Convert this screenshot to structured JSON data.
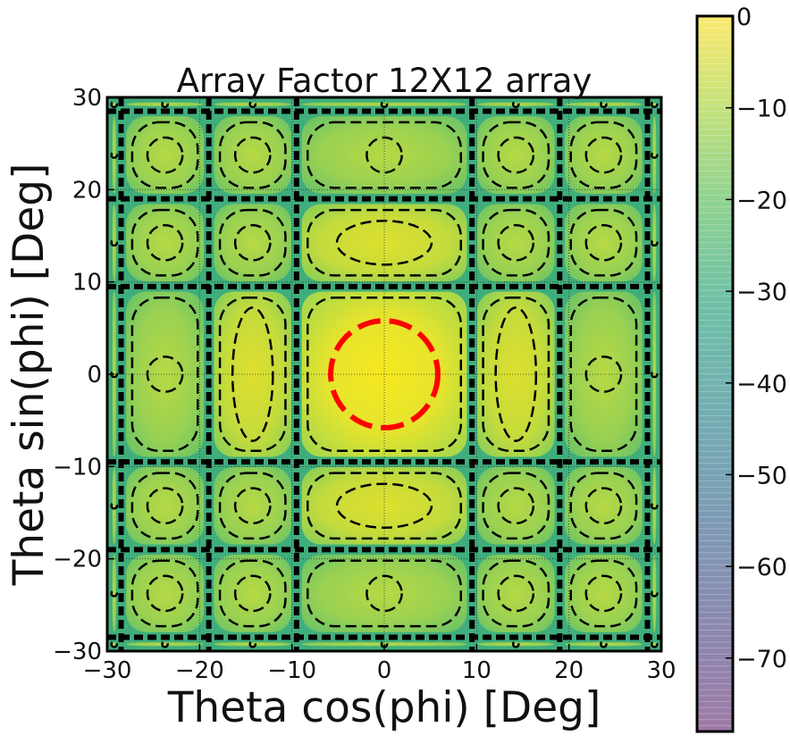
{
  "chart_data": {
    "type": "heatmap",
    "title": "Array Factor 12X12 array",
    "xlabel": "Theta cos(phi) [Deg]",
    "ylabel": "Theta sin(phi) [Deg]",
    "xlim": [
      -30,
      30
    ],
    "ylim": [
      -30,
      30
    ],
    "x_ticks": [
      -30,
      -20,
      -10,
      0,
      10,
      20,
      30
    ],
    "y_ticks": [
      -30,
      -20,
      -10,
      0,
      10,
      20,
      30
    ],
    "x_tick_labels": [
      "−30",
      "−20",
      "−10",
      "0",
      "10",
      "20",
      "30"
    ],
    "y_tick_labels": [
      "−30",
      "−20",
      "−10",
      "0",
      "10",
      "20",
      "30"
    ],
    "grid": true,
    "array_size": [
      12,
      12
    ],
    "null_lines_deg": [
      -28.5,
      -19,
      -9.5,
      9.5,
      19,
      28.5
    ],
    "half_power_contour": {
      "center": [
        0,
        0
      ],
      "radius": 5.8,
      "color": "#ff0000"
    },
    "colormap": "viridis",
    "colorbar": {
      "min": -78,
      "max": 0,
      "ticks": [
        0,
        -10,
        -20,
        -30,
        -40,
        -50,
        -60,
        -70
      ],
      "tick_labels": [
        "0",
        "−10",
        "−20",
        "−30",
        "−40",
        "−50",
        "−60",
        "−70"
      ]
    }
  }
}
